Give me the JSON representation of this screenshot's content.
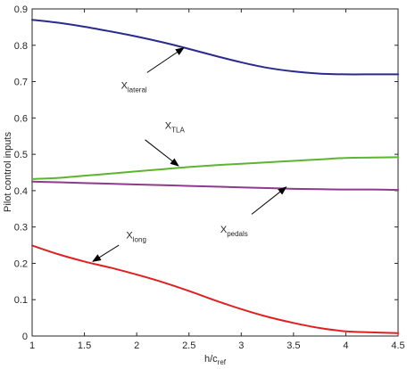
{
  "chart_data": {
    "type": "line",
    "xlabel": "h/c",
    "xlabel_sub": "ref",
    "ylabel": "Pilot control inputs",
    "xlim": [
      1,
      4.5
    ],
    "ylim": [
      0,
      0.9
    ],
    "xticks": [
      "1",
      "1.5",
      "2",
      "2.5",
      "3",
      "3.5",
      "4",
      "4.5"
    ],
    "yticks": [
      "0",
      "0.1",
      "0.2",
      "0.3",
      "0.4",
      "0.5",
      "0.6",
      "0.7",
      "0.8",
      "0.9"
    ],
    "grid": false,
    "series": [
      {
        "name": "X lateral",
        "color": "#2a2a8c",
        "x": [
          1,
          1.25,
          1.5,
          1.75,
          2,
          2.25,
          2.5,
          2.75,
          3,
          3.25,
          3.5,
          3.75,
          4,
          4.25,
          4.5
        ],
        "y": [
          0.87,
          0.862,
          0.851,
          0.838,
          0.824,
          0.808,
          0.79,
          0.771,
          0.753,
          0.738,
          0.728,
          0.722,
          0.72,
          0.72,
          0.72
        ]
      },
      {
        "name": "X TLA",
        "color": "#5cb531",
        "x": [
          1,
          1.25,
          1.5,
          1.75,
          2,
          2.25,
          2.5,
          2.75,
          3,
          3.25,
          3.5,
          3.75,
          4,
          4.25,
          4.5
        ],
        "y": [
          0.432,
          0.435,
          0.441,
          0.447,
          0.453,
          0.459,
          0.465,
          0.47,
          0.474,
          0.478,
          0.482,
          0.486,
          0.49,
          0.491,
          0.492
        ]
      },
      {
        "name": "X pedals",
        "color": "#8e3b8e",
        "x": [
          1,
          1.25,
          1.5,
          1.75,
          2,
          2.25,
          2.5,
          2.75,
          3,
          3.25,
          3.5,
          3.75,
          4,
          4.25,
          4.5
        ],
        "y": [
          0.425,
          0.423,
          0.421,
          0.419,
          0.417,
          0.415,
          0.413,
          0.411,
          0.409,
          0.407,
          0.405,
          0.404,
          0.403,
          0.403,
          0.402
        ]
      },
      {
        "name": "X long",
        "color": "#e02020",
        "x": [
          1,
          1.25,
          1.5,
          1.75,
          2,
          2.25,
          2.5,
          2.75,
          3,
          3.25,
          3.5,
          3.75,
          4,
          4.25,
          4.5
        ],
        "y": [
          0.249,
          0.225,
          0.205,
          0.188,
          0.169,
          0.148,
          0.124,
          0.098,
          0.074,
          0.053,
          0.036,
          0.022,
          0.013,
          0.01,
          0.008
        ]
      }
    ],
    "annotations": [
      {
        "base": "X",
        "sub": "lateral",
        "x": 1.85,
        "y": 0.68,
        "arrow_from": [
          2.1,
          0.725
        ],
        "arrow_to": [
          2.45,
          0.793
        ]
      },
      {
        "base": "X",
        "sub": "TLA",
        "x": 2.27,
        "y": 0.57,
        "arrow_from": [
          2.08,
          0.54
        ],
        "arrow_to": [
          2.4,
          0.468
        ]
      },
      {
        "base": "X",
        "sub": "pedals",
        "x": 2.8,
        "y": 0.285,
        "arrow_from": [
          3.1,
          0.335
        ],
        "arrow_to": [
          3.43,
          0.41
        ]
      },
      {
        "base": "X",
        "sub": "long",
        "x": 1.9,
        "y": 0.268,
        "arrow_from": [
          1.83,
          0.25
        ],
        "arrow_to": [
          1.58,
          0.205
        ]
      }
    ]
  }
}
